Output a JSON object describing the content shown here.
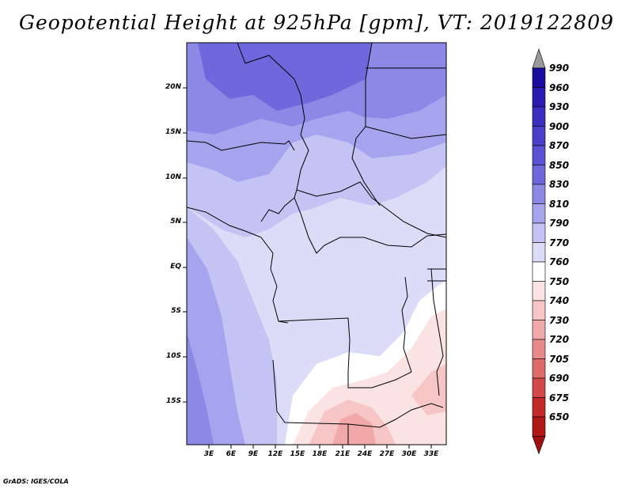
{
  "title": "Geopotential Height at 925hPa [gpm], VT: 2019122809",
  "footer": "GrADS: IGES/COLA",
  "map": {
    "lat_labels": [
      "20N",
      "15N",
      "10N",
      "5N",
      "EQ",
      "5S",
      "10S",
      "15S"
    ],
    "lon_labels": [
      "3E",
      "6E",
      "9E",
      "12E",
      "15E",
      "18E",
      "21E",
      "24E",
      "27E",
      "30E",
      "33E"
    ]
  },
  "colorbar": {
    "labels": [
      "990",
      "960",
      "930",
      "900",
      "870",
      "850",
      "830",
      "810",
      "790",
      "770",
      "760",
      "750",
      "740",
      "730",
      "720",
      "705",
      "690",
      "675",
      "650"
    ],
    "colors": [
      "#1a0d9e",
      "#2a1cb0",
      "#3b2fbf",
      "#4a3fc9",
      "#5b52d4",
      "#6e68dc",
      "#8c88e6",
      "#a6a4ee",
      "#c3c3f4",
      "#dcdcf9",
      "#ffffff",
      "#fbe3e3",
      "#f6c6c6",
      "#f0a8a8",
      "#e88a8a",
      "#df6a6a",
      "#d34848",
      "#c42a2a",
      "#b01818"
    ],
    "top_arrow_color": "#9a9a9a",
    "bottom_arrow_color": "#a01010"
  }
}
